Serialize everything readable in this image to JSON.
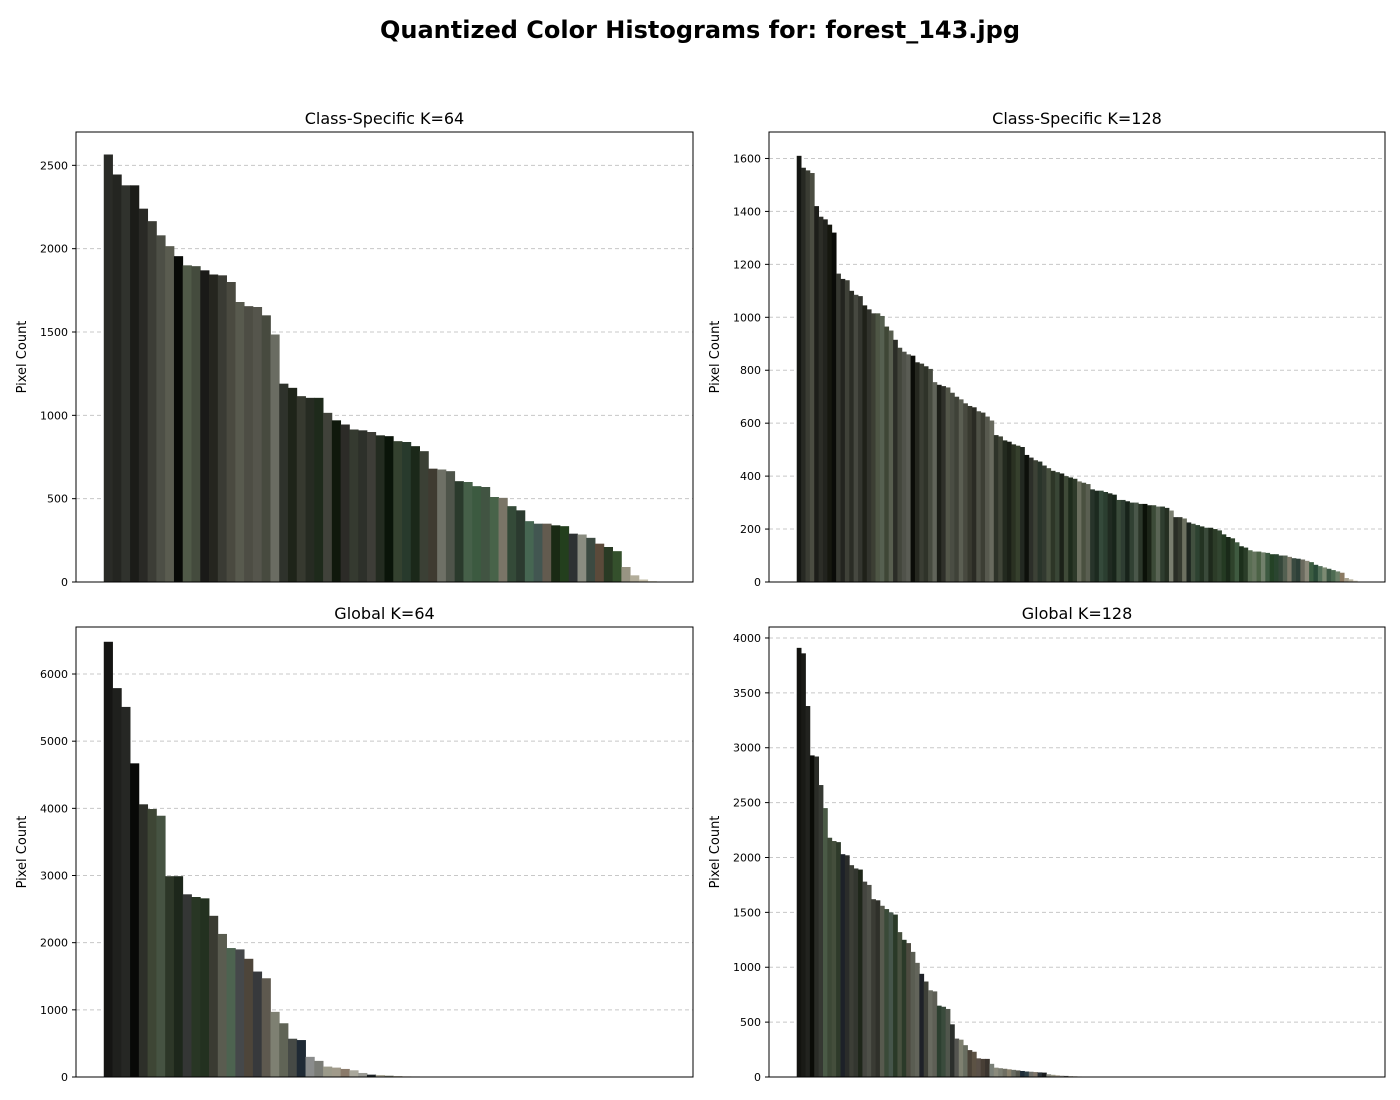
{
  "suptitle": "Quantized Color Histograms for: forest_143.jpg",
  "chart_data": [
    {
      "type": "bar",
      "title": "Class-Specific K=64",
      "ylabel": "Pixel Count",
      "xlabel": "",
      "ylim": [
        0,
        2700
      ],
      "yticks": [
        0,
        500,
        1000,
        1500,
        2000,
        2500
      ],
      "grid": "y-dashed",
      "values": [
        2565,
        2445,
        2380,
        2380,
        2240,
        2165,
        2080,
        2015,
        1955,
        1900,
        1895,
        1870,
        1845,
        1840,
        1800,
        1680,
        1655,
        1650,
        1600,
        1485,
        1190,
        1165,
        1115,
        1105,
        1105,
        1015,
        970,
        945,
        915,
        910,
        900,
        880,
        875,
        845,
        840,
        815,
        785,
        680,
        675,
        665,
        605,
        600,
        575,
        570,
        510,
        505,
        455,
        430,
        365,
        350,
        350,
        340,
        335,
        290,
        285,
        265,
        230,
        210,
        185,
        90,
        40,
        15,
        5,
        2
      ],
      "colors": [
        "#2a2b27",
        "#242521",
        "#30322d",
        "#1b1c18",
        "#292925",
        "#3c3d36",
        "#4d4f46",
        "#5a5c50",
        "#080a07",
        "#505a48",
        "#444b3d",
        "#1a1a18",
        "#25251f",
        "#3a3b34",
        "#4a4a40",
        "#585a4e",
        "#4d4d44",
        "#55554c",
        "#474a3f",
        "#6a6c62",
        "#2e322b",
        "#1e2419",
        "#36392f",
        "#262b22",
        "#1e2a1b",
        "#40423a",
        "#0f180c",
        "#2c2b27",
        "#353a30",
        "#2d302a",
        "#3d3d37",
        "#232b20",
        "#0a1409",
        "#34412f",
        "#283a2c",
        "#1b2819",
        "#3b4035",
        "#3f3b31",
        "#6e7066",
        "#4e544a",
        "#2a3a2c",
        "#466049",
        "#3c5a40",
        "#415442",
        "#486349",
        "#7a7567",
        "#344a38",
        "#2b3a2f",
        "#466652",
        "#425651",
        "#635b4f",
        "#1a2a14",
        "#233f1d",
        "#2e3233",
        "#8a8c80",
        "#3c4a41",
        "#5b4a3a",
        "#2a3a24",
        "#34502c",
        "#989483",
        "#b2ad9a",
        "#c6c0ab",
        "#d5cfbb",
        "#e0dccb"
      ]
    },
    {
      "type": "bar",
      "title": "Class-Specific K=128",
      "ylabel": "Pixel Count",
      "xlabel": "",
      "ylim": [
        0,
        1700
      ],
      "yticks": [
        0,
        200,
        400,
        600,
        800,
        1000,
        1200,
        1400,
        1600
      ],
      "grid": "y-dashed",
      "values": [
        1610,
        1565,
        1555,
        1545,
        1420,
        1380,
        1370,
        1350,
        1320,
        1165,
        1145,
        1140,
        1100,
        1085,
        1080,
        1045,
        1030,
        1015,
        1015,
        1005,
        965,
        950,
        915,
        885,
        870,
        860,
        855,
        830,
        825,
        815,
        805,
        755,
        745,
        740,
        735,
        715,
        700,
        690,
        675,
        665,
        660,
        645,
        640,
        625,
        610,
        555,
        550,
        535,
        530,
        520,
        515,
        510,
        480,
        470,
        460,
        455,
        440,
        430,
        420,
        415,
        410,
        400,
        395,
        390,
        380,
        375,
        370,
        350,
        345,
        345,
        340,
        335,
        330,
        310,
        310,
        305,
        300,
        300,
        295,
        295,
        290,
        290,
        285,
        285,
        280,
        270,
        245,
        245,
        240,
        225,
        220,
        215,
        210,
        205,
        205,
        200,
        195,
        180,
        170,
        165,
        150,
        135,
        130,
        120,
        115,
        115,
        112,
        110,
        105,
        105,
        100,
        100,
        95,
        90,
        88,
        85,
        80,
        75,
        65,
        60,
        55,
        50,
        45,
        40,
        35,
        15,
        10,
        5
      ],
      "colors": [
        "#141612",
        "#272923",
        "#3a3c33",
        "#4b4d42",
        "#1d1e1a",
        "#2c2d27",
        "#22231e",
        "#16170f",
        "#0a0b08",
        "#363831",
        "#23241f",
        "#3f4138",
        "#2a2c25",
        "#464840",
        "#33352e",
        "#1f2119",
        "#31332c",
        "#3c3f34",
        "#4e5645",
        "#566050",
        "#3f4736",
        "#585e4f",
        "#2b2d27",
        "#43463c",
        "#50524a",
        "#5a5c54",
        "#0b0c08",
        "#25271f",
        "#3a3d33",
        "#2f3329",
        "#464a3f",
        "#61645a",
        "#1c1e18",
        "#2f302a",
        "#535649",
        "#4a4d43",
        "#3f4238",
        "#5b5e52",
        "#48493f",
        "#38392f",
        "#2a2b24",
        "#4e5146",
        "#3c3e34",
        "#57594e",
        "#686a5e",
        "#2e3329",
        "#3f4437",
        "#232a1f",
        "#1a1f16",
        "#2a3122",
        "#36402d",
        "#222821",
        "#0d100b",
        "#2c2f29",
        "#3c4136",
        "#29342a",
        "#323a30",
        "#485140",
        "#2d3627",
        "#394636",
        "#1b2118",
        "#3f4a38",
        "#1e2b1c",
        "#2e3a2a",
        "#6a6e5e",
        "#4a5140",
        "#5a5f51",
        "#27342a",
        "#1c2a1f",
        "#34493a",
        "#2b3e30",
        "#202b21",
        "#18251a",
        "#3a4b3a",
        "#2e3d32",
        "#17231a",
        "#314133",
        "#4a574a",
        "#2b3629",
        "#0b1108",
        "#1c2518",
        "#3c4b38",
        "#5a6555",
        "#2f3d2f",
        "#252f22",
        "#7a7e6f",
        "#2a2e26",
        "#353a2f",
        "#6c7060",
        "#1e2620",
        "#41503f",
        "#2d4231",
        "#233322",
        "#3a4a3a",
        "#1e2a1c",
        "#2c3c28",
        "#324530",
        "#243a22",
        "#1a2a19",
        "#2e422b",
        "#3f5a40",
        "#1c2f1b",
        "#2a3d28",
        "#5a6e54",
        "#66755f",
        "#4c6246",
        "#71806b",
        "#3e5a42",
        "#244226",
        "#2a4530",
        "#35473a",
        "#536051",
        "#7d7a6a",
        "#3a4a40",
        "#2e4038",
        "#6a6a5e",
        "#8a8879",
        "#3c5d42",
        "#2a4a38",
        "#54705a",
        "#7c8a73",
        "#3d5845",
        "#4d6b52",
        "#6b8068",
        "#8b7a62",
        "#a8a18e",
        "#bbb6a2",
        "#cfcab7"
      ]
    },
    {
      "type": "bar",
      "title": "Global K=64",
      "ylabel": "Pixel Count",
      "xlabel": "",
      "ylim": [
        0,
        6700
      ],
      "yticks": [
        0,
        1000,
        2000,
        3000,
        4000,
        5000,
        6000
      ],
      "grid": "y-dashed",
      "values": [
        6480,
        5790,
        5510,
        4670,
        4060,
        3990,
        3890,
        2990,
        2990,
        2720,
        2680,
        2660,
        2400,
        2130,
        1920,
        1900,
        1760,
        1570,
        1470,
        970,
        800,
        570,
        550,
        300,
        240,
        155,
        140,
        120,
        100,
        60,
        35,
        30,
        20,
        15,
        10,
        8,
        5,
        4,
        3,
        3,
        2,
        2,
        2,
        1,
        1,
        1,
        1,
        1,
        1,
        1,
        1,
        1,
        1,
        1,
        1,
        1,
        0,
        0,
        0,
        0,
        0,
        0,
        0,
        0
      ],
      "colors": [
        "#151513",
        "#1f201d",
        "#262724",
        "#080907",
        "#2d2f29",
        "#3e4635",
        "#465342",
        "#2d3728",
        "#1d271b",
        "#343635",
        "#283624",
        "#233120",
        "#3a3b32",
        "#5a5c50",
        "#4d6350",
        "#45484a",
        "#4d453a",
        "#37393c",
        "#5e594f",
        "#7e8072",
        "#606456",
        "#464a46",
        "#1f2a35",
        "#8a8c8c",
        "#7a7c76",
        "#9b9a8a",
        "#a09a8a",
        "#8a7a6a",
        "#aaa89c",
        "#9a9a94",
        "#1d2326",
        "#b0ae9e",
        "#7b8070",
        "#b9b4a3",
        "#c4c0b0",
        "#6d6e60",
        "#cbc7b5",
        "#a9b1a0",
        "#d3d0c0",
        "#ddd9ca",
        "#e0e0d0",
        "#e6e2d3",
        "#c0c0b8",
        "#eae7d9",
        "#dcdcd4",
        "#f0ece0",
        "#bcbcae",
        "#f4f0e6",
        "#d2c8b4",
        "#f6f4ea",
        "#eee6d2",
        "#b4a890",
        "#d8d4c0",
        "#c8c4ae",
        "#e8e4d4",
        "#f2f0e4",
        "#f8f6ee",
        "#e0dcc8",
        "#f4f2ea",
        "#fafaf4",
        "#f0eee2",
        "#fcfcf8",
        "#ecece4",
        "#f8f8f2"
      ]
    },
    {
      "type": "bar",
      "title": "Global K=128",
      "ylabel": "Pixel Count",
      "xlabel": "",
      "ylim": [
        0,
        4100
      ],
      "yticks": [
        0,
        500,
        1000,
        1500,
        2000,
        2500,
        3000,
        3500,
        4000
      ],
      "grid": "y-dashed",
      "values": [
        3910,
        3860,
        3380,
        2930,
        2920,
        2660,
        2450,
        2180,
        2150,
        2140,
        2030,
        2020,
        1930,
        1900,
        1890,
        1780,
        1750,
        1620,
        1610,
        1560,
        1530,
        1500,
        1480,
        1320,
        1250,
        1220,
        1140,
        1040,
        940,
        870,
        790,
        780,
        650,
        640,
        620,
        480,
        350,
        340,
        290,
        245,
        230,
        170,
        165,
        165,
        120,
        85,
        80,
        75,
        70,
        65,
        60,
        55,
        50,
        48,
        45,
        42,
        40,
        25,
        20,
        15,
        12,
        10,
        8,
        6,
        5,
        4,
        3,
        3,
        2,
        2,
        2,
        1,
        1,
        1,
        1,
        1,
        1,
        1,
        1,
        1,
        1,
        1,
        1,
        1,
        1,
        1,
        1,
        1,
        1,
        1,
        0,
        0,
        0,
        0,
        0,
        0,
        0,
        0,
        0,
        0,
        0,
        0,
        0,
        0,
        0,
        0,
        0,
        0,
        0,
        0,
        0,
        0,
        0,
        0,
        0,
        0,
        0,
        0,
        0,
        0,
        0,
        0,
        0,
        0,
        0,
        0,
        0,
        0
      ],
      "colors": [
        "#12130f",
        "#191a16",
        "#22231f",
        "#0a0b07",
        "#2a2c27",
        "#353832",
        "#4a5a46",
        "#3c4836",
        "#444e3c",
        "#2e3a2a",
        "#1d2128",
        "#2a2c2a",
        "#3c3e36",
        "#33362f",
        "#1e2619",
        "#454640",
        "#4e5048",
        "#3a3b34",
        "#2f302a",
        "#575a4e",
        "#3a4a38",
        "#45554a",
        "#2a3a28",
        "#47503f",
        "#2b3a29",
        "#4d4b40",
        "#5a5d52",
        "#62645a",
        "#1e2128",
        "#3e4038",
        "#686a60",
        "#5e5f56",
        "#2c3f30",
        "#3a4b3c",
        "#50564c",
        "#2b2f2c",
        "#545550",
        "#7e8070",
        "#686d60",
        "#4a4238",
        "#5c5244",
        "#5a5048",
        "#483f36",
        "#3a342e",
        "#7a8078",
        "#8a8a7c",
        "#7b7e72",
        "#6e6e62",
        "#88806c",
        "#6a6d63",
        "#55574e",
        "#1e2d39",
        "#2c3e45",
        "#70706a",
        "#80766a",
        "#2a3035",
        "#1a1c1e",
        "#8a8a80",
        "#9a9a88",
        "#a09888",
        "#969690",
        "#585858",
        "#aeaa9a",
        "#8c8272",
        "#b4b0a0",
        "#c2bcaa",
        "#c8c4b4",
        "#d0ccbc",
        "#d8d4c4",
        "#dcd8ca",
        "#e0ddd0",
        "#e4e0d4",
        "#e8e6da",
        "#ecebe0",
        "#eeeee4",
        "#f0f0e8",
        "#f2f2ea",
        "#f4f4ec",
        "#f6f6ee",
        "#f8f8f0",
        "#f8f8f2",
        "#fafaf4",
        "#fafaf6",
        "#fcfcf8",
        "#fcfcfa",
        "#fdfdfb",
        "#fdfdfc",
        "#fefefc",
        "#fefefd",
        "#fefefe",
        "#efeadc",
        "#e6dfcc",
        "#dcd6c2",
        "#d2ccb8",
        "#c8c2ae",
        "#beb8a4",
        "#b4ae9a",
        "#aaa490",
        "#a09a86",
        "#96907c",
        "#8c8672",
        "#827c68",
        "#78725e",
        "#6e6854",
        "#645e4a",
        "#5a5440",
        "#504a36",
        "#46402c",
        "#3c3622",
        "#322c18",
        "#28220e",
        "#1e1804",
        "#e2e6d6",
        "#d6dccc",
        "#cad2c2",
        "#bec8b8",
        "#b2beae",
        "#a6b4a4",
        "#9aaa9a",
        "#8ea090",
        "#829686",
        "#768c7c",
        "#6a8272",
        "#5e7868",
        "#526e5e",
        "#466454",
        "#3a5a4a",
        "#2e5040"
      ]
    }
  ]
}
